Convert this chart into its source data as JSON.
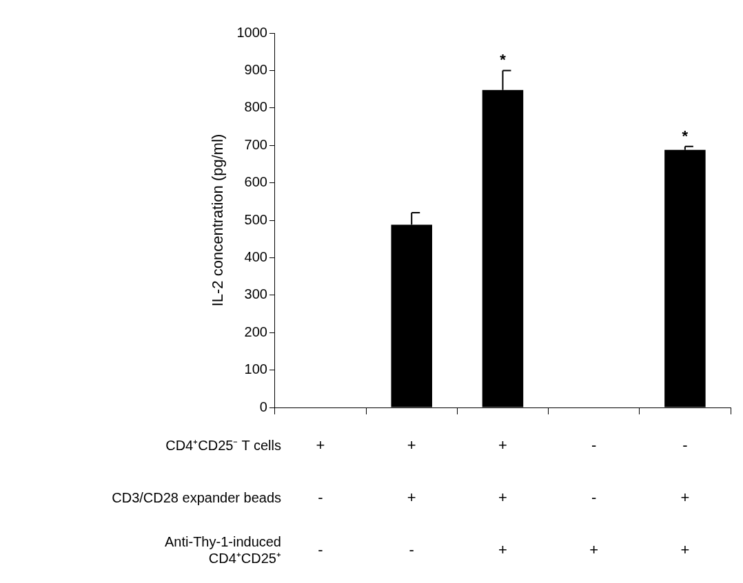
{
  "chart_data": {
    "type": "bar",
    "ylabel": "IL-2 concentration (pg/ml)",
    "categories": [
      "+\n-\n-",
      "+\n+\n-",
      "+\n+\n+",
      "-\n-\n+",
      "-\n+\n+"
    ],
    "values": [
      0,
      488,
      848,
      0,
      688
    ],
    "errors": [
      null,
      [
        488,
        520
      ],
      [
        848,
        900
      ],
      null,
      [
        688,
        697
      ]
    ],
    "color": "#000000",
    "ylim": [
      0,
      1000
    ],
    "yticks": [
      0,
      100,
      200,
      300,
      400,
      500,
      600,
      700,
      800,
      900,
      1000
    ],
    "grid": false,
    "legend": false,
    "annotations": [
      "CD4⁺CD25⁻ T cells",
      "CD3/CD28 expander beads",
      "Anti-Thy-1-induced\nCD4⁺CD25⁺",
      {
        "text": "*",
        "x": "+\n+\n+",
        "y": 900
      },
      {
        "text": "*",
        "x": "-\n+\n+",
        "y": 697
      }
    ]
  }
}
